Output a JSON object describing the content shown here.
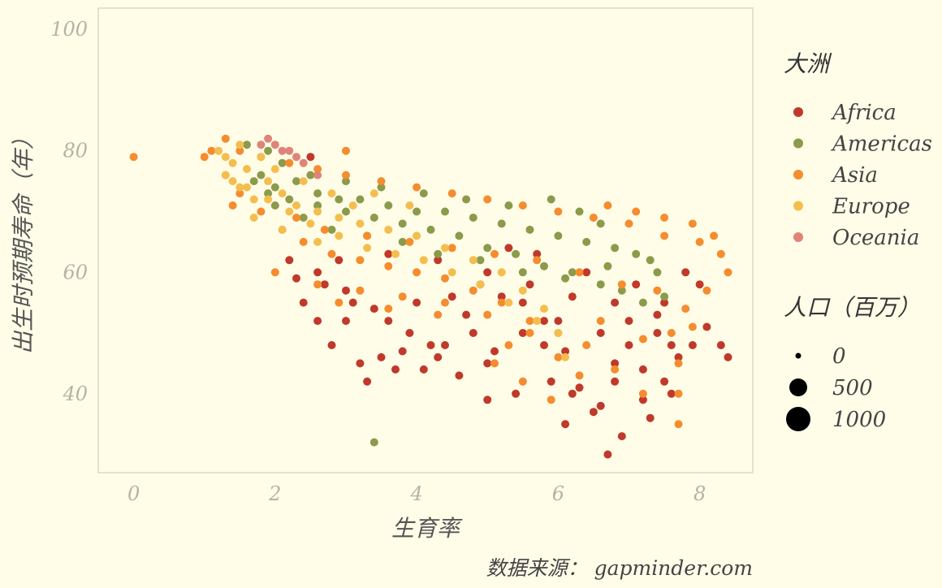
{
  "chart_data": {
    "type": "scatter",
    "title": "",
    "xlabel": "生育率",
    "ylabel": "出生时预期寿命（年）",
    "caption": "数据来源： gapminder.com",
    "xlim": [
      -0.5,
      8.75
    ],
    "ylim": [
      27,
      103.5
    ],
    "x_ticks": [
      "0",
      "2",
      "4",
      "6",
      "8"
    ],
    "x_tick_values": [
      0,
      2,
      4,
      6,
      8
    ],
    "y_ticks": [
      "40",
      "60",
      "80",
      "100"
    ],
    "y_tick_values": [
      40,
      60,
      80,
      100
    ],
    "grid": false,
    "legend_placement": "right",
    "color_legend": {
      "title": "大洲",
      "entries": [
        {
          "name": "Africa",
          "color": "#c0392b"
        },
        {
          "name": "Americas",
          "color": "#8c9a4b"
        },
        {
          "name": "Asia",
          "color": "#f58c2e"
        },
        {
          "name": "Europe",
          "color": "#f4be4e"
        },
        {
          "name": "Oceania",
          "color": "#e08378"
        }
      ]
    },
    "size_legend": {
      "title": "人口（百万）",
      "entries": [
        {
          "label": "0",
          "value": 0
        },
        {
          "label": "500",
          "value": 500
        },
        {
          "label": "1000",
          "value": 1000
        }
      ]
    },
    "series": [
      {
        "name": "Africa",
        "points": [
          [
            7.9,
            48
          ],
          [
            7.7,
            46
          ],
          [
            7.5,
            42
          ],
          [
            7.2,
            44
          ],
          [
            7.0,
            48
          ],
          [
            6.8,
            42
          ],
          [
            6.6,
            38
          ],
          [
            6.3,
            41
          ],
          [
            6.1,
            47
          ],
          [
            5.8,
            52
          ],
          [
            5.5,
            50
          ],
          [
            5.2,
            56
          ],
          [
            5.0,
            45
          ],
          [
            4.7,
            53
          ],
          [
            4.4,
            48
          ],
          [
            4.1,
            44
          ],
          [
            3.8,
            47
          ],
          [
            3.5,
            46
          ],
          [
            3.3,
            42
          ],
          [
            3.1,
            55
          ],
          [
            2.8,
            48
          ],
          [
            2.6,
            52
          ],
          [
            2.4,
            55
          ],
          [
            2.3,
            59
          ],
          [
            2.9,
            62
          ],
          [
            3.6,
            63
          ],
          [
            4.3,
            62
          ],
          [
            5.0,
            60
          ],
          [
            5.6,
            58
          ],
          [
            6.2,
            56
          ],
          [
            6.8,
            55
          ],
          [
            7.4,
            53
          ],
          [
            8.1,
            51
          ],
          [
            8.3,
            48
          ],
          [
            8.4,
            46
          ],
          [
            7.6,
            40
          ],
          [
            7.3,
            36
          ],
          [
            6.9,
            33
          ],
          [
            6.7,
            30
          ],
          [
            6.5,
            37
          ],
          [
            6.1,
            35
          ],
          [
            5.9,
            42
          ],
          [
            5.4,
            40
          ],
          [
            5.0,
            39
          ],
          [
            4.6,
            43
          ],
          [
            4.2,
            48
          ],
          [
            3.9,
            50
          ],
          [
            3.6,
            52
          ],
          [
            3.0,
            57
          ],
          [
            2.6,
            60
          ],
          [
            7.1,
            58
          ],
          [
            7.5,
            55
          ],
          [
            7.8,
            60
          ],
          [
            6.4,
            60
          ],
          [
            5.7,
            63
          ],
          [
            5.3,
            64
          ],
          [
            4.9,
            58
          ],
          [
            4.5,
            56
          ],
          [
            4.0,
            55
          ],
          [
            3.4,
            54
          ],
          [
            2.5,
            79
          ],
          [
            6.0,
            52
          ],
          [
            6.6,
            50
          ],
          [
            7.0,
            52
          ],
          [
            7.4,
            50
          ],
          [
            7.6,
            48
          ],
          [
            5.5,
            55
          ],
          [
            4.8,
            50
          ],
          [
            3.7,
            44
          ],
          [
            3.2,
            45
          ],
          [
            6.2,
            40
          ],
          [
            6.8,
            45
          ],
          [
            7.2,
            39
          ],
          [
            5.8,
            48
          ],
          [
            5.1,
            47
          ],
          [
            4.3,
            46
          ],
          [
            2.7,
            58
          ],
          [
            3.0,
            52
          ],
          [
            2.2,
            62
          ],
          [
            8.0,
            58
          ]
        ]
      },
      {
        "name": "Americas",
        "points": [
          [
            1.6,
            81
          ],
          [
            1.9,
            80
          ],
          [
            2.1,
            78
          ],
          [
            1.8,
            76
          ],
          [
            2.0,
            74
          ],
          [
            2.3,
            75
          ],
          [
            2.6,
            73
          ],
          [
            2.9,
            72
          ],
          [
            3.2,
            72
          ],
          [
            3.6,
            71
          ],
          [
            4.0,
            70
          ],
          [
            4.4,
            70
          ],
          [
            4.8,
            69
          ],
          [
            5.2,
            68
          ],
          [
            5.6,
            67
          ],
          [
            6.0,
            66
          ],
          [
            6.4,
            65
          ],
          [
            6.8,
            64
          ],
          [
            7.1,
            63
          ],
          [
            7.4,
            60
          ],
          [
            7.5,
            56
          ],
          [
            7.2,
            55
          ],
          [
            6.9,
            57
          ],
          [
            6.6,
            58
          ],
          [
            6.2,
            60
          ],
          [
            5.8,
            61
          ],
          [
            5.4,
            63
          ],
          [
            5.0,
            64
          ],
          [
            4.6,
            66
          ],
          [
            4.2,
            67
          ],
          [
            3.8,
            68
          ],
          [
            3.4,
            69
          ],
          [
            3.0,
            70
          ],
          [
            2.6,
            71
          ],
          [
            2.2,
            72
          ],
          [
            1.9,
            73
          ],
          [
            1.7,
            75
          ],
          [
            2.0,
            71
          ],
          [
            2.4,
            69
          ],
          [
            2.8,
            67
          ],
          [
            3.3,
            66
          ],
          [
            3.8,
            65
          ],
          [
            4.3,
            63
          ],
          [
            4.9,
            62
          ],
          [
            5.5,
            60
          ],
          [
            6.1,
            59
          ],
          [
            6.7,
            61
          ],
          [
            7.3,
            62
          ],
          [
            3.4,
            32
          ],
          [
            5.9,
            72
          ],
          [
            6.3,
            70
          ],
          [
            6.6,
            68
          ],
          [
            2.5,
            76
          ],
          [
            3.0,
            75
          ],
          [
            3.5,
            74
          ],
          [
            4.1,
            73
          ],
          [
            4.7,
            72
          ],
          [
            5.3,
            71
          ]
        ]
      },
      {
        "name": "Asia",
        "points": [
          [
            1.1,
            80
          ],
          [
            1.3,
            82
          ],
          [
            1.5,
            80
          ],
          [
            1.8,
            79
          ],
          [
            2.2,
            78
          ],
          [
            2.6,
            77
          ],
          [
            3.0,
            76
          ],
          [
            3.5,
            75
          ],
          [
            4.0,
            74
          ],
          [
            4.5,
            73
          ],
          [
            5.0,
            72
          ],
          [
            5.5,
            71
          ],
          [
            6.0,
            70
          ],
          [
            6.5,
            69
          ],
          [
            7.0,
            68
          ],
          [
            7.5,
            66
          ],
          [
            8.0,
            65
          ],
          [
            8.3,
            63
          ],
          [
            8.4,
            60
          ],
          [
            8.1,
            57
          ],
          [
            7.8,
            54
          ],
          [
            7.6,
            50
          ],
          [
            7.7,
            45
          ],
          [
            7.7,
            40
          ],
          [
            7.7,
            35
          ],
          [
            7.2,
            40
          ],
          [
            6.8,
            44
          ],
          [
            6.4,
            48
          ],
          [
            6.0,
            50
          ],
          [
            5.6,
            52
          ],
          [
            5.2,
            55
          ],
          [
            4.8,
            57
          ],
          [
            4.4,
            59
          ],
          [
            4.0,
            60
          ],
          [
            3.6,
            61
          ],
          [
            3.2,
            62
          ],
          [
            2.8,
            63
          ],
          [
            2.4,
            65
          ],
          [
            2.1,
            67
          ],
          [
            1.8,
            70
          ],
          [
            1.5,
            73
          ],
          [
            1.3,
            76
          ],
          [
            2.0,
            60
          ],
          [
            2.6,
            58
          ],
          [
            3.2,
            57
          ],
          [
            3.8,
            56
          ],
          [
            4.4,
            55
          ],
          [
            5.0,
            53
          ],
          [
            5.6,
            50
          ],
          [
            6.0,
            46
          ],
          [
            6.3,
            43
          ],
          [
            5.9,
            39
          ],
          [
            5.5,
            42
          ],
          [
            5.1,
            45
          ],
          [
            6.7,
            71
          ],
          [
            7.1,
            70
          ],
          [
            7.5,
            69
          ],
          [
            7.9,
            68
          ],
          [
            8.2,
            66
          ],
          [
            3.0,
            80
          ],
          [
            2.7,
            67
          ],
          [
            3.3,
            66
          ],
          [
            3.9,
            65
          ],
          [
            4.5,
            64
          ],
          [
            5.1,
            63
          ],
          [
            5.7,
            62
          ],
          [
            6.3,
            60
          ],
          [
            6.9,
            58
          ],
          [
            7.4,
            57
          ],
          [
            0.0,
            79
          ],
          [
            1.0,
            79
          ],
          [
            1.4,
            71
          ],
          [
            2.3,
            69
          ],
          [
            2.9,
            55
          ],
          [
            3.6,
            54
          ],
          [
            4.3,
            53
          ],
          [
            5.3,
            48
          ],
          [
            6.6,
            52
          ],
          [
            7.2,
            49
          ],
          [
            7.9,
            51
          ]
        ]
      },
      {
        "name": "Europe",
        "points": [
          [
            1.2,
            80
          ],
          [
            1.4,
            78
          ],
          [
            1.3,
            76
          ],
          [
            1.5,
            74
          ],
          [
            1.7,
            72
          ],
          [
            1.6,
            77
          ],
          [
            1.9,
            75
          ],
          [
            2.1,
            73
          ],
          [
            2.3,
            71
          ],
          [
            2.6,
            70
          ],
          [
            2.9,
            69
          ],
          [
            3.2,
            68
          ],
          [
            3.6,
            67
          ],
          [
            4.0,
            66
          ],
          [
            4.4,
            64
          ],
          [
            4.8,
            62
          ],
          [
            5.2,
            60
          ],
          [
            5.5,
            57
          ],
          [
            5.8,
            54
          ],
          [
            6.0,
            50
          ],
          [
            6.1,
            46
          ],
          [
            5.7,
            52
          ],
          [
            5.3,
            55
          ],
          [
            4.9,
            58
          ],
          [
            4.5,
            60
          ],
          [
            4.1,
            62
          ],
          [
            3.7,
            63
          ],
          [
            3.3,
            64
          ],
          [
            2.9,
            66
          ],
          [
            2.5,
            68
          ],
          [
            2.2,
            70
          ],
          [
            1.9,
            72
          ],
          [
            1.6,
            74
          ],
          [
            1.3,
            79
          ],
          [
            1.5,
            81
          ],
          [
            1.8,
            79
          ],
          [
            2.0,
            77
          ],
          [
            2.4,
            75
          ],
          [
            2.8,
            73
          ],
          [
            3.1,
            71
          ],
          [
            1.4,
            75
          ],
          [
            1.7,
            69
          ],
          [
            2.1,
            67
          ],
          [
            2.6,
            65
          ],
          [
            3.4,
            73
          ],
          [
            3.9,
            71
          ]
        ]
      },
      {
        "name": "Oceania",
        "points": [
          [
            1.9,
            82
          ],
          [
            2.0,
            81
          ],
          [
            2.2,
            80
          ],
          [
            2.4,
            78
          ],
          [
            2.6,
            76
          ],
          [
            2.3,
            79
          ],
          [
            2.1,
            80
          ],
          [
            1.8,
            81
          ]
        ]
      }
    ]
  }
}
